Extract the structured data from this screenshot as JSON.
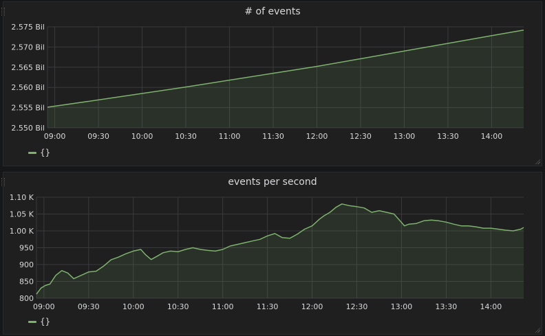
{
  "colors": {
    "background": "#161719",
    "panel": "#1f1f20",
    "grid": "#393a3c",
    "text": "#d8d9da",
    "series": "#7eb26d"
  },
  "chart_data": [
    {
      "type": "area",
      "title": "# of events",
      "x_ticks": [
        "09:00",
        "09:30",
        "10:00",
        "10:30",
        "11:00",
        "11:30",
        "12:00",
        "12:30",
        "13:00",
        "13:30",
        "14:00"
      ],
      "y_ticks": [
        "2.550 Bil",
        "2.555 Bil",
        "2.560 Bil",
        "2.565 Bil",
        "2.570 Bil",
        "2.575 Bil"
      ],
      "xlim": [
        "08:55",
        "14:22"
      ],
      "ylim": [
        2.55,
        2.575
      ],
      "y_unit": "Bil",
      "grid": true,
      "legend": "bottom-left",
      "series": [
        {
          "name": "{}",
          "x": [
            "08:55",
            "09:30",
            "10:00",
            "10:30",
            "11:00",
            "11:30",
            "12:00",
            "12:30",
            "13:00",
            "13:30",
            "14:00",
            "14:22"
          ],
          "values": [
            2.5551,
            2.5569,
            2.5585,
            2.5601,
            2.5618,
            2.5635,
            2.5652,
            2.5671,
            2.569,
            2.5709,
            2.5728,
            2.5742
          ]
        }
      ]
    },
    {
      "type": "area",
      "title": "events per second",
      "x_ticks": [
        "09:00",
        "09:30",
        "10:00",
        "10:30",
        "11:00",
        "11:30",
        "12:00",
        "12:30",
        "13:00",
        "13:30",
        "14:00"
      ],
      "y_ticks": [
        "800",
        "850",
        "900",
        "950",
        "1.00 K",
        "1.05 K",
        "1.10 K"
      ],
      "xlim": [
        "08:55",
        "14:22"
      ],
      "ylim": [
        800,
        1100
      ],
      "grid": true,
      "legend": "bottom-left",
      "series": [
        {
          "name": "{}",
          "x": [
            "08:55",
            "08:58",
            "09:01",
            "09:04",
            "09:08",
            "09:12",
            "09:16",
            "09:20",
            "09:25",
            "09:30",
            "09:35",
            "09:40",
            "09:45",
            "09:50",
            "09:55",
            "10:00",
            "10:05",
            "10:08",
            "10:12",
            "10:16",
            "10:20",
            "10:25",
            "10:30",
            "10:35",
            "10:40",
            "10:45",
            "10:50",
            "10:55",
            "11:00",
            "11:05",
            "11:10",
            "11:15",
            "11:20",
            "11:25",
            "11:30",
            "11:35",
            "11:40",
            "11:45",
            "11:50",
            "11:55",
            "12:00",
            "12:05",
            "12:08",
            "12:12",
            "12:16",
            "12:20",
            "12:25",
            "12:30",
            "12:35",
            "12:40",
            "12:45",
            "12:50",
            "12:55",
            "13:00",
            "13:02",
            "13:05",
            "13:10",
            "13:15",
            "13:20",
            "13:25",
            "13:30",
            "13:35",
            "13:40",
            "13:45",
            "13:50",
            "13:55",
            "14:00",
            "14:05",
            "14:10",
            "14:15",
            "14:20",
            "14:22"
          ],
          "values": [
            812,
            830,
            838,
            842,
            868,
            882,
            875,
            858,
            868,
            878,
            880,
            895,
            914,
            922,
            932,
            940,
            945,
            930,
            915,
            925,
            935,
            940,
            938,
            945,
            950,
            945,
            942,
            940,
            945,
            955,
            960,
            965,
            970,
            975,
            985,
            992,
            980,
            978,
            990,
            1005,
            1015,
            1035,
            1045,
            1055,
            1070,
            1080,
            1075,
            1072,
            1068,
            1055,
            1060,
            1055,
            1050,
            1025,
            1015,
            1020,
            1022,
            1030,
            1032,
            1030,
            1026,
            1020,
            1015,
            1015,
            1012,
            1008,
            1008,
            1005,
            1002,
            1000,
            1005,
            1010
          ]
        }
      ]
    }
  ]
}
